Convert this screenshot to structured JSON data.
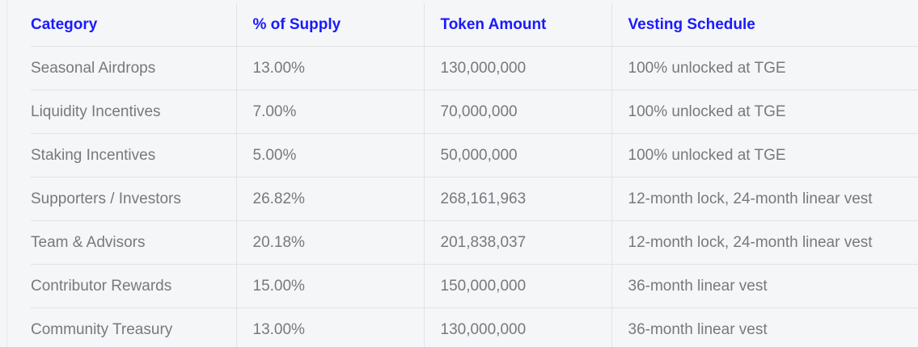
{
  "table": {
    "headers": [
      "Category",
      "% of Supply",
      "Token Amount",
      "Vesting Schedule"
    ],
    "rows": [
      [
        "Seasonal Airdrops",
        "13.00%",
        "130,000,000",
        "100% unlocked at TGE"
      ],
      [
        "Liquidity Incentives",
        "7.00%",
        "70,000,000",
        "100% unlocked at TGE"
      ],
      [
        "Staking Incentives",
        "5.00%",
        "50,000,000",
        "100% unlocked at TGE"
      ],
      [
        "Supporters / Investors",
        "26.82%",
        "268,161,963",
        "12-month lock, 24-month linear vest"
      ],
      [
        "Team & Advisors",
        "20.18%",
        "201,838,037",
        "12-month lock, 24-month linear vest"
      ],
      [
        "Contributor Rewards",
        "15.00%",
        "150,000,000",
        "36-month linear vest"
      ],
      [
        "Community Treasury",
        "13.00%",
        "130,000,000",
        "36-month linear vest"
      ]
    ]
  },
  "colors": {
    "header_text": "#1a1aff",
    "body_text": "#77797f",
    "background": "#f5f6f7",
    "border": "#e1e3e6"
  }
}
